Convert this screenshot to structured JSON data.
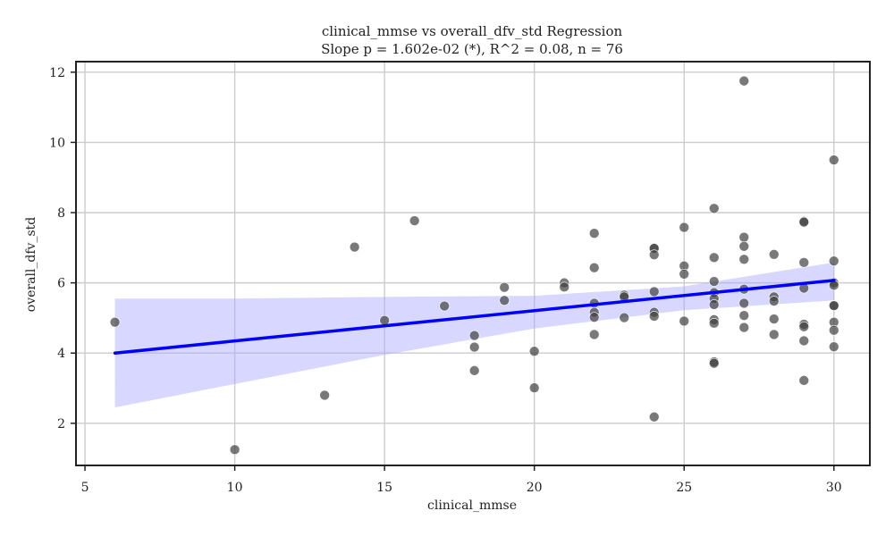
{
  "chart_data": {
    "type": "scatter",
    "title": "clinical_mmse vs overall_dfv_std Regression",
    "subtitle": "Slope p = 1.602e-02 (*), R^2 = 0.08, n = 76",
    "xlabel": "clinical_mmse",
    "ylabel": "overall_dfv_std",
    "xlim": [
      4.7,
      31.2
    ],
    "ylim": [
      0.8,
      12.3
    ],
    "xticks": [
      5,
      10,
      15,
      20,
      25,
      30
    ],
    "yticks": [
      2,
      4,
      6,
      8,
      10,
      12
    ],
    "grid": true,
    "points": [
      [
        6,
        4.88
      ],
      [
        10,
        1.25
      ],
      [
        13,
        2.8
      ],
      [
        14,
        7.02
      ],
      [
        15,
        4.93
      ],
      [
        16,
        7.77
      ],
      [
        17,
        5.34
      ],
      [
        18,
        4.5
      ],
      [
        18,
        4.17
      ],
      [
        18,
        3.5
      ],
      [
        19,
        5.87
      ],
      [
        19,
        5.5
      ],
      [
        20,
        4.05
      ],
      [
        20,
        3.01
      ],
      [
        21,
        6.0
      ],
      [
        21,
        5.88
      ],
      [
        22,
        7.41
      ],
      [
        22,
        6.43
      ],
      [
        22,
        5.42
      ],
      [
        22,
        5.16
      ],
      [
        22,
        5.02
      ],
      [
        22,
        4.53
      ],
      [
        23,
        5.65
      ],
      [
        23,
        5.6
      ],
      [
        23,
        5.01
      ],
      [
        24,
        7.0
      ],
      [
        24,
        6.98
      ],
      [
        24,
        6.8
      ],
      [
        24,
        5.75
      ],
      [
        24,
        5.16
      ],
      [
        24,
        5.05
      ],
      [
        24,
        2.18
      ],
      [
        25,
        7.58
      ],
      [
        25,
        6.48
      ],
      [
        25,
        6.25
      ],
      [
        25,
        4.91
      ],
      [
        26,
        8.12
      ],
      [
        26,
        6.72
      ],
      [
        26,
        6.04
      ],
      [
        26,
        5.72
      ],
      [
        26,
        5.55
      ],
      [
        26,
        5.38
      ],
      [
        26,
        4.95
      ],
      [
        26,
        4.85
      ],
      [
        26,
        3.75
      ],
      [
        26,
        3.71
      ],
      [
        27,
        11.75
      ],
      [
        27,
        7.3
      ],
      [
        27,
        7.04
      ],
      [
        27,
        6.67
      ],
      [
        27,
        5.82
      ],
      [
        27,
        5.42
      ],
      [
        27,
        5.07
      ],
      [
        27,
        4.73
      ],
      [
        28,
        6.81
      ],
      [
        28,
        5.6
      ],
      [
        28,
        5.48
      ],
      [
        28,
        4.97
      ],
      [
        28,
        4.53
      ],
      [
        29,
        7.75
      ],
      [
        29,
        7.73
      ],
      [
        29,
        6.58
      ],
      [
        29,
        5.85
      ],
      [
        29,
        4.82
      ],
      [
        29,
        4.75
      ],
      [
        29,
        4.35
      ],
      [
        29,
        3.22
      ],
      [
        30,
        9.5
      ],
      [
        30,
        6.62
      ],
      [
        30,
        6.0
      ],
      [
        30,
        5.93
      ],
      [
        30,
        5.36
      ],
      [
        30,
        5.35
      ],
      [
        30,
        4.88
      ],
      [
        30,
        4.65
      ],
      [
        30,
        4.18
      ]
    ],
    "regression": {
      "x": [
        6,
        30
      ],
      "y": [
        4.0,
        6.07
      ]
    },
    "confidence_band": {
      "x": [
        6,
        10,
        15,
        20,
        25,
        30
      ],
      "lower": [
        2.45,
        3.12,
        3.95,
        4.7,
        5.22,
        5.5
      ],
      "upper": [
        5.55,
        5.55,
        5.6,
        5.63,
        5.9,
        6.58
      ]
    },
    "colors": {
      "points": "#404040",
      "regression_line": "#0000ff",
      "confidence_band": "#a6a6ff",
      "grid": "#cccccc",
      "axes": "#222222"
    }
  }
}
